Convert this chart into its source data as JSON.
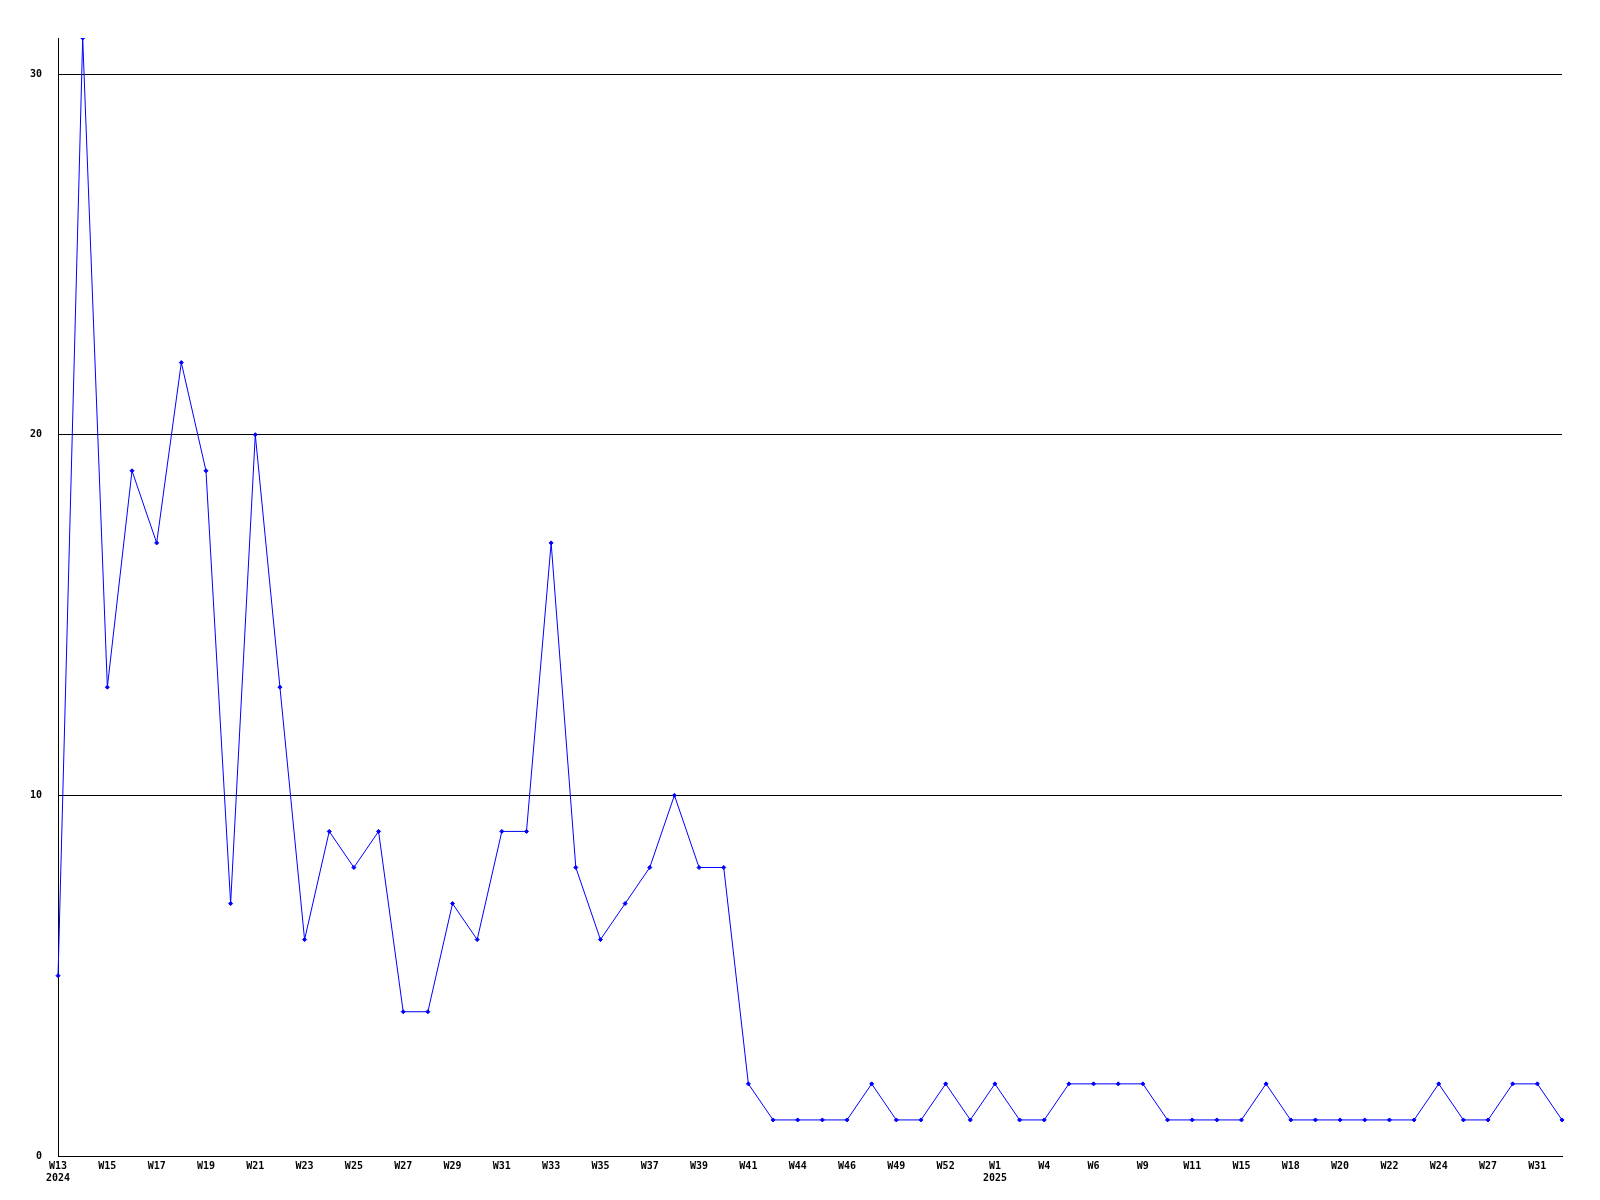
{
  "chart_data": {
    "type": "line",
    "categories": [
      "W13\n2024",
      null,
      "W15",
      null,
      "W17",
      null,
      "W19",
      null,
      "W21",
      null,
      "W23",
      null,
      "W25",
      null,
      "W27",
      null,
      "W29",
      null,
      "W31",
      null,
      "W33",
      null,
      "W35",
      null,
      "W37",
      null,
      "W39",
      null,
      "W41",
      null,
      "W44",
      null,
      "W46",
      null,
      "W49",
      null,
      "W52",
      null,
      "W1\n2025",
      null,
      "W4",
      null,
      "W6",
      null,
      "W9",
      null,
      "W11",
      null,
      "W15",
      null,
      "W18",
      null,
      "W20",
      null,
      "W22",
      null,
      "W24",
      null,
      "W27",
      null,
      "W31",
      null
    ],
    "series": [
      {
        "color": "#0000ff",
        "values": [
          5,
          31,
          13,
          19,
          17,
          22,
          19,
          7,
          20,
          13,
          6,
          9,
          8,
          9,
          4,
          4,
          7,
          6,
          9,
          9,
          17,
          8,
          6,
          7,
          8,
          10,
          8,
          8,
          2,
          1,
          1,
          1,
          1,
          2,
          1,
          1,
          2,
          1,
          2,
          1,
          1,
          2,
          2,
          2,
          2,
          1,
          1,
          1,
          1,
          2,
          1,
          1,
          1,
          1,
          1,
          1,
          2,
          1,
          1,
          2,
          2,
          1
        ]
      }
    ],
    "ylim": [
      0,
      31
    ],
    "yticks": [
      0,
      10,
      20,
      30
    ],
    "grid": "y",
    "marker": "diamond",
    "line_style": "solid",
    "legend": false
  }
}
